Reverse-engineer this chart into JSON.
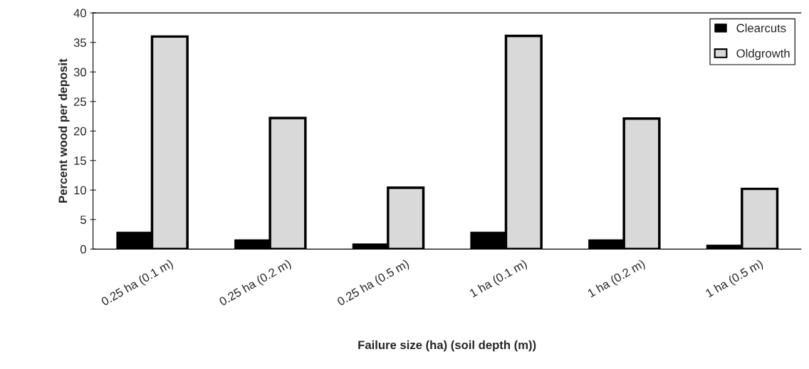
{
  "chart_data": {
    "type": "bar",
    "xlabel": "Failure size (ha) (soil depth (m))",
    "ylabel": "Percent wood per deposit",
    "categories": [
      "0.25 ha (0.1 m)",
      "0.25 ha (0.2 m)",
      "0.25 ha (0.5 m)",
      "1 ha (0.1 m)",
      "1 ha (0.2 m)",
      "1 ha (0.5 m)"
    ],
    "series": [
      {
        "name": "Clearcuts",
        "color": "#000000",
        "values": [
          2.9,
          1.6,
          0.9,
          2.9,
          1.6,
          0.7
        ]
      },
      {
        "name": "Oldgrowth",
        "color": "#d9d9d9",
        "values": [
          36,
          22.2,
          10.4,
          36.1,
          22.1,
          10.2
        ]
      }
    ],
    "ylim": [
      0,
      40
    ],
    "yticks": [
      0,
      5,
      10,
      15,
      20,
      25,
      30,
      35,
      40
    ],
    "grid": false,
    "legend": "top right"
  }
}
